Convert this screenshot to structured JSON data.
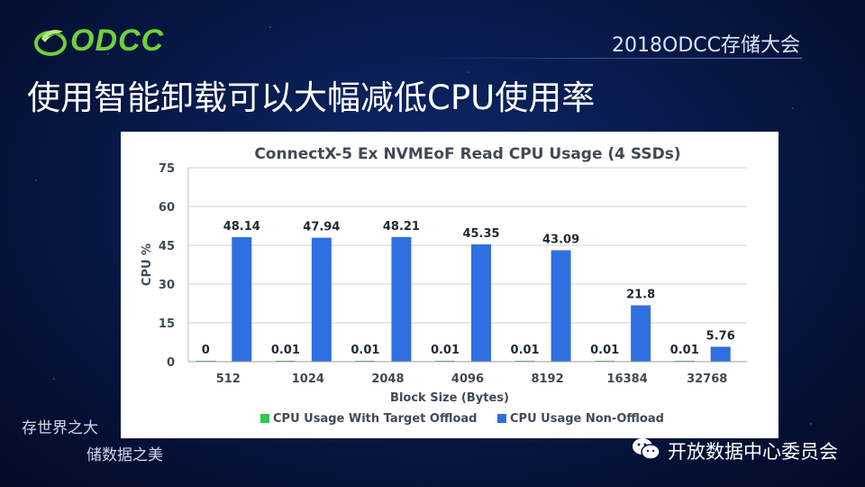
{
  "header": {
    "logo_text": "ODCC",
    "event_title": "2018ODCC存储大会"
  },
  "slide_title": "使用智能卸载可以大幅减低CPU使用率",
  "footer": {
    "slogan_line1": "存世界之大",
    "slogan_line2": "储数据之美",
    "wechat_account": "开放数据中心委员会",
    "wechat_icon": "wechat-icon"
  },
  "colors": {
    "offload": "#2fc84a",
    "non_offload": "#2f6fe0",
    "logo_green": "#6fd13a"
  },
  "chart_data": {
    "type": "bar",
    "title": "ConnectX-5 Ex NVMEoF Read CPU Usage (4 SSDs)",
    "xlabel": "Block Size (Bytes)",
    "ylabel": "CPU %",
    "ylim": [
      0,
      75
    ],
    "yticks": [
      "0",
      "15",
      "30",
      "45",
      "60",
      "75"
    ],
    "categories": [
      "512",
      "1024",
      "2048",
      "4096",
      "8192",
      "16384",
      "32768"
    ],
    "series": [
      {
        "name": "CPU Usage With Target Offload",
        "values": [
          0,
          0.01,
          0.01,
          0.01,
          0.01,
          0.01,
          0.01
        ]
      },
      {
        "name": "CPU Usage Non-Offload",
        "values": [
          48.14,
          47.94,
          48.21,
          45.35,
          43.09,
          21.8,
          5.76
        ]
      }
    ],
    "legend_position": "bottom",
    "grid": true
  }
}
